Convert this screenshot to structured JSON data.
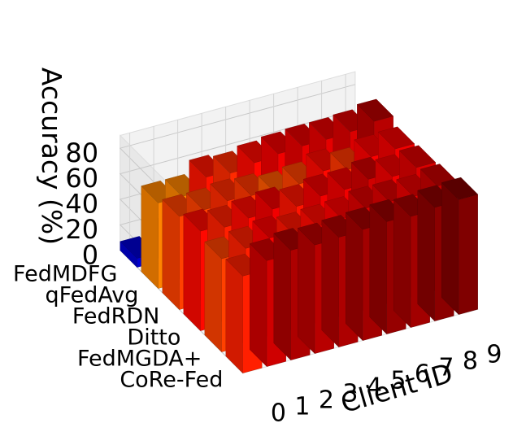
{
  "chart_data": {
    "type": "bar3d",
    "zlabel": "Accuracy (%)",
    "xlabel": "Client ID",
    "zlim": [
      0,
      90
    ],
    "z_ticks": [
      0,
      20,
      40,
      60,
      80
    ],
    "clients": [
      "0",
      "1",
      "2",
      "3",
      "4",
      "5",
      "6",
      "7",
      "8",
      "9"
    ],
    "methods": [
      "CoRe-Fed",
      "FedMGDA+",
      "Ditto",
      "FedRDN",
      "qFedAvg",
      "FedMDFG"
    ],
    "colormap": "jet",
    "grid": true,
    "values": {
      "FedMDFG": [
        7,
        17,
        23,
        20,
        22,
        27,
        22,
        28,
        37,
        40
      ],
      "qFedAvg": [
        67,
        67,
        77,
        75,
        78,
        80,
        81,
        81,
        82,
        85
      ],
      "FedRDN": [
        73,
        73,
        75,
        74,
        71,
        73,
        78,
        74,
        79,
        80
      ],
      "Ditto": [
        78,
        76,
        78,
        80,
        77,
        80,
        80,
        83,
        80,
        82
      ],
      "FedMGDA+": [
        73,
        76,
        79,
        77,
        78,
        79,
        82,
        82,
        81,
        84
      ],
      "CoRe-Fed": [
        76,
        83,
        86,
        85,
        86,
        87,
        88,
        87,
        89,
        90
      ]
    }
  }
}
